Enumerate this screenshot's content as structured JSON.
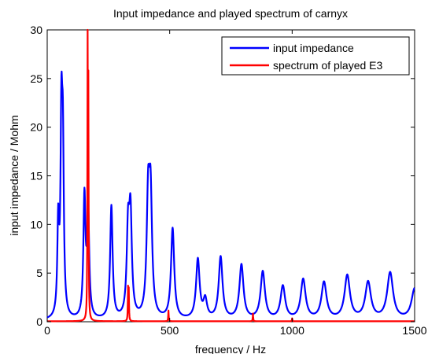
{
  "chart_data": {
    "type": "line",
    "title": "Input impedance and played spectrum of carnyx",
    "xlabel": "frequency / Hz",
    "ylabel": "input impedance / Mohm",
    "xlim": [
      0,
      1500
    ],
    "ylim": [
      0,
      30
    ],
    "xticks": [
      0,
      500,
      1000,
      1500
    ],
    "yticks": [
      0,
      5,
      10,
      15,
      20,
      25,
      30
    ],
    "grid": false,
    "legend_position": "top-right",
    "series": [
      {
        "name": "input impedance",
        "color": "#0000ff",
        "peaks": [
          {
            "f": 45,
            "a": 9.2
          },
          {
            "f": 58,
            "a": 18.6
          },
          {
            "f": 64,
            "a": 15.7
          },
          {
            "f": 152,
            "a": 12.3
          },
          {
            "f": 167,
            "a": 10.8
          },
          {
            "f": 262,
            "a": 11.6
          },
          {
            "f": 330,
            "a": 8.5
          },
          {
            "f": 340,
            "a": 10.1
          },
          {
            "f": 412,
            "a": 11.5
          },
          {
            "f": 422,
            "a": 11.7
          },
          {
            "f": 512,
            "a": 9.3
          },
          {
            "f": 615,
            "a": 6.1
          },
          {
            "f": 645,
            "a": 1.9
          },
          {
            "f": 708,
            "a": 6.4
          },
          {
            "f": 793,
            "a": 5.6
          },
          {
            "f": 880,
            "a": 4.9
          },
          {
            "f": 962,
            "a": 3.4
          },
          {
            "f": 1045,
            "a": 4.1
          },
          {
            "f": 1130,
            "a": 3.8
          },
          {
            "f": 1225,
            "a": 4.5
          },
          {
            "f": 1310,
            "a": 3.8
          },
          {
            "f": 1400,
            "a": 4.8
          },
          {
            "f": 1500,
            "a": 3.2
          }
        ]
      },
      {
        "name": "spectrum of played E3",
        "color": "#ff0000",
        "peaks": [
          {
            "f": 165,
            "a": 27.7
          },
          {
            "f": 168,
            "a": 22.5
          },
          {
            "f": 330,
            "a": 3.3
          },
          {
            "f": 333,
            "a": 3.1
          },
          {
            "f": 495,
            "a": 1.1
          },
          {
            "f": 840,
            "a": 0.8
          },
          {
            "f": 1000,
            "a": 0.3
          }
        ]
      }
    ]
  }
}
